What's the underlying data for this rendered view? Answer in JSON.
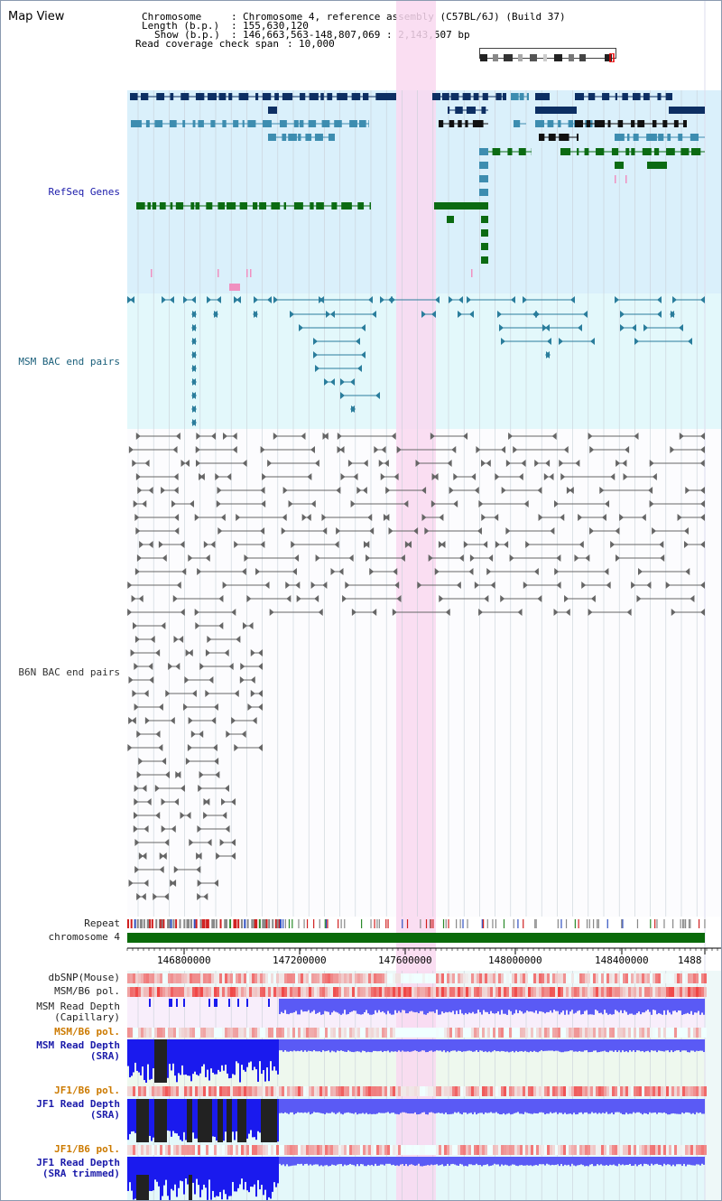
{
  "view_title": "Map View",
  "header": {
    "chromosome_label": "Chromosome",
    "chromosome_value": "Chromosome 4, reference assembly (C57BL/6J) (Build 37)",
    "length_label": "Length (b.p.)",
    "length_value": "155,630,120",
    "show_label": "Show (b.p.)",
    "show_value": "146,663,563-148,807,069 : 2,143,507 bp",
    "coverage_label": "Read coverage check span",
    "coverage_value": "10,000"
  },
  "tracks": {
    "refseq": "RefSeq Genes",
    "msm_bac": "MSM BAC end pairs",
    "b6n_bac": "B6N BAC end pairs",
    "repeat": "Repeat",
    "chromosome": "chromosome 4",
    "dbsnp": "dbSNP(Mouse)",
    "msm_b6_pol_1": "MSM/B6 pol.",
    "msm_read_depth_cap_1": "MSM Read Depth",
    "msm_read_depth_cap_2": "(Capillary)",
    "msm_b6_pol_2": "MSM/B6 pol.",
    "msm_read_depth_sra_1": "MSM Read Depth",
    "msm_read_depth_sra_2": "(SRA)",
    "jf1_b6_pol_1": "JF1/B6 pol.",
    "jf1_read_depth_sra_1": "JF1 Read Depth",
    "jf1_read_depth_sra_2": "(SRA)",
    "jf1_b6_pol_2": "JF1/B6 pol.",
    "jf1_read_depth_trim_1": "JF1 Read Depth",
    "jf1_read_depth_trim_2": "(SRA trimmed)"
  },
  "axis": {
    "ticks": [
      "146800000",
      "147200000",
      "147600000",
      "148000000",
      "148400000",
      "1488"
    ]
  },
  "colors": {
    "refseq_bg": "#daf0fb",
    "msm_bg": "#e3f8fb",
    "highlight": "#f9d8f0",
    "gene_navy": "#0d2f63",
    "gene_teal": "#3d8db0",
    "gene_green": "#0b6b12",
    "bac_teal": "#2a7d9c",
    "bac_gray": "#666666",
    "chrom_green": "#0a6a0a",
    "depth_blue": "#1a1aee",
    "pol_red": "#e03030"
  }
}
